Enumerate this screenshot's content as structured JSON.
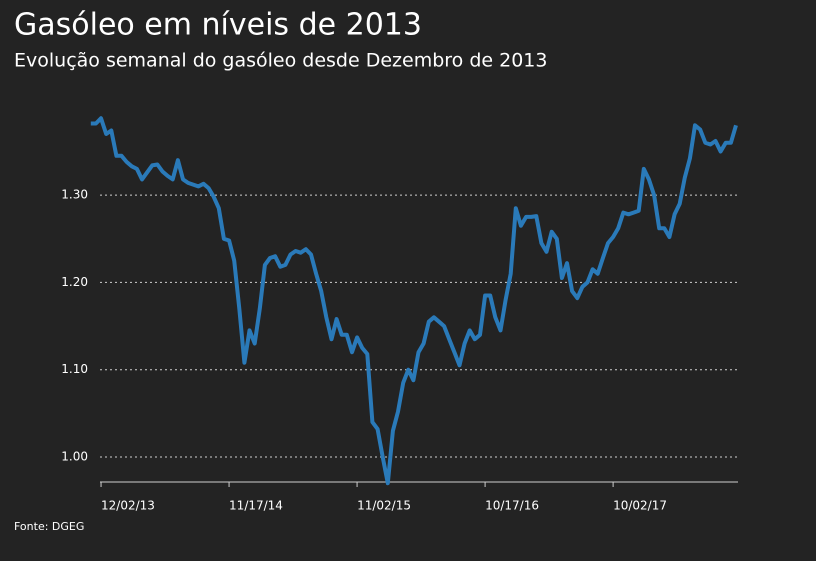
{
  "chart_data": {
    "type": "line",
    "title": "Gasóleo em níveis de 2013",
    "subtitle": "Evolução semanal do gasóleo desde Dezembro de 2013",
    "source": "Fonte: DGEG",
    "categories": [
      null,
      null,
      "12/02/13",
      null,
      null,
      null,
      null,
      null,
      null,
      null,
      null,
      null,
      null,
      null,
      null,
      null,
      null,
      null,
      null,
      null,
      null,
      null,
      null,
      null,
      null,
      null,
      null,
      "11/17/14",
      null,
      null,
      null,
      null,
      null,
      null,
      null,
      null,
      null,
      null,
      null,
      null,
      null,
      null,
      null,
      null,
      null,
      null,
      null,
      null,
      null,
      null,
      null,
      null,
      "11/02/15",
      null,
      null,
      null,
      null,
      null,
      null,
      null,
      null,
      null,
      null,
      null,
      null,
      null,
      null,
      null,
      null,
      null,
      null,
      null,
      null,
      null,
      null,
      null,
      null,
      "10/17/16",
      null,
      null,
      null,
      null,
      null,
      null,
      null,
      null,
      null,
      null,
      null,
      null,
      null,
      null,
      null,
      null,
      null,
      null,
      null,
      null,
      null,
      null,
      null,
      null,
      "10/02/17",
      null,
      null,
      null,
      null,
      null,
      null,
      null,
      null,
      null,
      null,
      null,
      null,
      null,
      null,
      null,
      null,
      null,
      null,
      null,
      null,
      null,
      null,
      null,
      null
    ],
    "series": [
      {
        "color": "#2a7ab9",
        "values": [
          1.382,
          1.382,
          1.388,
          1.37,
          1.374,
          1.345,
          1.345,
          1.338,
          1.333,
          1.33,
          1.318,
          1.326,
          1.334,
          1.335,
          1.327,
          1.322,
          1.318,
          1.34,
          1.318,
          1.314,
          1.312,
          1.31,
          1.313,
          1.308,
          1.298,
          1.285,
          1.25,
          1.248,
          1.225,
          1.17,
          1.108,
          1.145,
          1.13,
          1.17,
          1.22,
          1.228,
          1.23,
          1.218,
          1.22,
          1.232,
          1.236,
          1.234,
          1.238,
          1.232,
          1.21,
          1.19,
          1.16,
          1.135,
          1.158,
          1.14,
          1.14,
          1.12,
          1.137,
          1.125,
          1.118,
          1.04,
          1.032,
          1.0,
          0.97,
          1.03,
          1.052,
          1.085,
          1.1,
          1.088,
          1.12,
          1.13,
          1.155,
          1.16,
          1.155,
          1.15,
          1.135,
          1.12,
          1.105,
          1.13,
          1.145,
          1.135,
          1.14,
          1.185,
          1.185,
          1.16,
          1.145,
          1.18,
          1.21,
          1.285,
          1.265,
          1.275,
          1.275,
          1.276,
          1.245,
          1.235,
          1.258,
          1.25,
          1.205,
          1.222,
          1.19,
          1.182,
          1.195,
          1.2,
          1.215,
          1.21,
          1.228,
          1.245,
          1.252,
          1.262,
          1.28,
          1.278,
          1.28,
          1.282,
          1.33,
          1.318,
          1.3,
          1.262,
          1.262,
          1.252,
          1.278,
          1.29,
          1.32,
          1.342,
          1.38,
          1.375,
          1.36,
          1.358,
          1.362,
          1.35,
          1.36,
          1.36,
          1.38
        ]
      }
    ],
    "ylim": [
      0.97,
      1.4
    ],
    "yticks": [
      {
        "value": 1,
        "label": "1.00"
      },
      {
        "value": 1.1,
        "label": "1.10"
      },
      {
        "value": 1.2,
        "label": "1.20"
      },
      {
        "value": 1.3,
        "label": "1.30"
      }
    ],
    "grid": true
  }
}
